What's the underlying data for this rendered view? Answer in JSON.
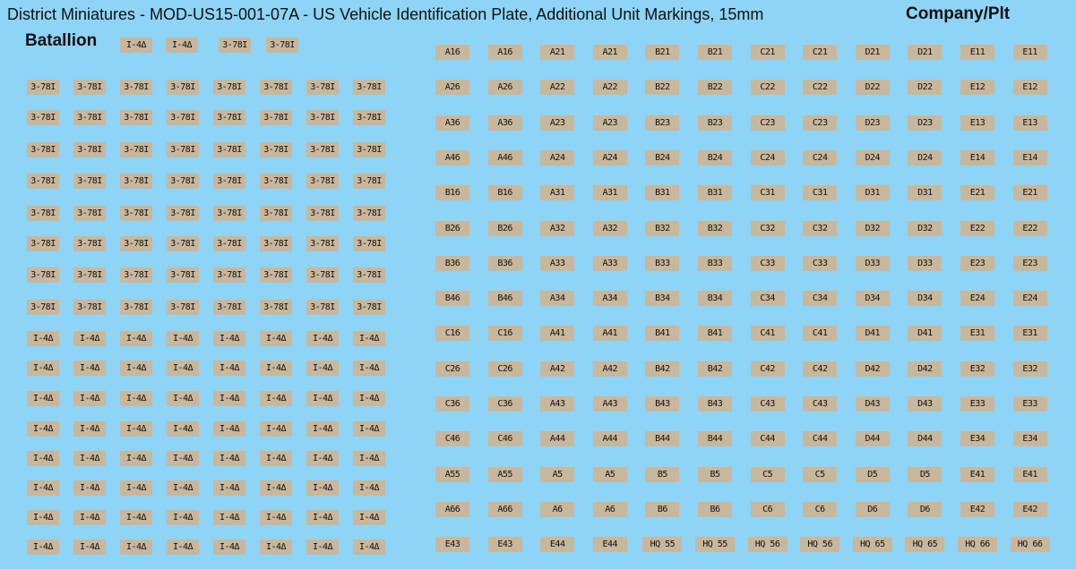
{
  "header": {
    "title": "District Miniatures - MOD-US15-001-07A - US Vehicle Identification Plate, Additional Unit Markings, 15mm",
    "company_label": "Company/Plt"
  },
  "batallion": {
    "label": "Batallion",
    "top_row": [
      "I-4Δ",
      "I-4Δ",
      "3-78I",
      "3-78I"
    ],
    "rows": [
      [
        "3-78I",
        "3-78I",
        "3-78I",
        "3-78I",
        "3-78I",
        "3-78I",
        "3-78I",
        "3-78I"
      ],
      [
        "3-78I",
        "3-78I",
        "3-78I",
        "3-78I",
        "3-78I",
        "3-78I",
        "3-78I",
        "3-78I"
      ],
      [
        "3-78I",
        "3-78I",
        "3-78I",
        "3-78I",
        "3-78I",
        "3-78I",
        "3-78I",
        "3-78I"
      ],
      [
        "3-78I",
        "3-78I",
        "3-78I",
        "3-78I",
        "3-78I",
        "3-78I",
        "3-78I",
        "3-78I"
      ],
      [
        "3-78I",
        "3-78I",
        "3-78I",
        "3-78I",
        "3-78I",
        "3-78I",
        "3-78I",
        "3-78I"
      ],
      [
        "3-78I",
        "3-78I",
        "3-78I",
        "3-78I",
        "3-78I",
        "3-78I",
        "3-78I",
        "3-78I"
      ],
      [
        "3-78I",
        "3-78I",
        "3-78I",
        "3-78I",
        "3-78I",
        "3-78I",
        "3-78I",
        "3-78I"
      ],
      [
        "3-78I",
        "3-78I",
        "3-78I",
        "3-78I",
        "3-78I",
        "3-78I",
        "3-78I",
        "3-78I"
      ],
      [
        "I-4Δ",
        "I-4Δ",
        "I-4Δ",
        "I-4Δ",
        "I-4Δ",
        "I-4Δ",
        "I-4Δ",
        "I-4Δ"
      ],
      [
        "I-4Δ",
        "I-4Δ",
        "I-4Δ",
        "I-4Δ",
        "I-4Δ",
        "I-4Δ",
        "I-4Δ",
        "I-4Δ"
      ],
      [
        "I-4Δ",
        "I-4Δ",
        "I-4Δ",
        "I-4Δ",
        "I-4Δ",
        "I-4Δ",
        "I-4Δ",
        "I-4Δ"
      ],
      [
        "I-4Δ",
        "I-4Δ",
        "I-4Δ",
        "I-4Δ",
        "I-4Δ",
        "I-4Δ",
        "I-4Δ",
        "I-4Δ"
      ],
      [
        "I-4Δ",
        "I-4Δ",
        "I-4Δ",
        "I-4Δ",
        "I-4Δ",
        "I-4Δ",
        "I-4Δ",
        "I-4Δ"
      ],
      [
        "I-4Δ",
        "I-4Δ",
        "I-4Δ",
        "I-4Δ",
        "I-4Δ",
        "I-4Δ",
        "I-4Δ",
        "I-4Δ"
      ],
      [
        "I-4Δ",
        "I-4Δ",
        "I-4Δ",
        "I-4Δ",
        "I-4Δ",
        "I-4Δ",
        "I-4Δ",
        "I-4Δ"
      ],
      [
        "I-4Δ",
        "I-4Δ",
        "I-4Δ",
        "I-4Δ",
        "I-4Δ",
        "I-4Δ",
        "I-4Δ",
        "I-4Δ"
      ]
    ]
  },
  "company": {
    "rows": [
      [
        "A16",
        "A16",
        "A21",
        "A21",
        "B21",
        "B21",
        "C21",
        "C21",
        "D21",
        "D21",
        "E11",
        "E11"
      ],
      [
        "A26",
        "A26",
        "A22",
        "A22",
        "B22",
        "B22",
        "C22",
        "C22",
        "D22",
        "D22",
        "E12",
        "E12"
      ],
      [
        "A36",
        "A36",
        "A23",
        "A23",
        "B23",
        "B23",
        "C23",
        "C23",
        "D23",
        "D23",
        "E13",
        "E13"
      ],
      [
        "A46",
        "A46",
        "A24",
        "A24",
        "B24",
        "B24",
        "C24",
        "C24",
        "D24",
        "D24",
        "E14",
        "E14"
      ],
      [
        "B16",
        "B16",
        "A31",
        "A31",
        "B31",
        "B31",
        "C31",
        "C31",
        "D31",
        "D31",
        "E21",
        "E21"
      ],
      [
        "B26",
        "B26",
        "A32",
        "A32",
        "B32",
        "B32",
        "C32",
        "C32",
        "D32",
        "D32",
        "E22",
        "E22"
      ],
      [
        "B36",
        "B36",
        "A33",
        "A33",
        "B33",
        "B33",
        "C33",
        "C33",
        "D33",
        "D33",
        "E23",
        "E23"
      ],
      [
        "B46",
        "B46",
        "A34",
        "A34",
        "B34",
        "B34",
        "C34",
        "C34",
        "D34",
        "D34",
        "E24",
        "E24"
      ],
      [
        "C16",
        "C16",
        "A41",
        "A41",
        "B41",
        "B41",
        "C41",
        "C41",
        "D41",
        "D41",
        "E31",
        "E31"
      ],
      [
        "C26",
        "C26",
        "A42",
        "A42",
        "B42",
        "B42",
        "C42",
        "C42",
        "D42",
        "D42",
        "E32",
        "E32"
      ],
      [
        "C36",
        "C36",
        "A43",
        "A43",
        "B43",
        "B43",
        "C43",
        "C43",
        "D43",
        "D43",
        "E33",
        "E33"
      ],
      [
        "C46",
        "C46",
        "A44",
        "A44",
        "B44",
        "B44",
        "C44",
        "C44",
        "D44",
        "D44",
        "E34",
        "E34"
      ],
      [
        "A55",
        "A55",
        "A5",
        "A5",
        "B5",
        "B5",
        "C5",
        "C5",
        "D5",
        "D5",
        "E41",
        "E41"
      ],
      [
        "A66",
        "A66",
        "A6",
        "A6",
        "B6",
        "B6",
        "C6",
        "C6",
        "D6",
        "D6",
        "E42",
        "E42"
      ],
      [
        "E43",
        "E43",
        "E44",
        "E44",
        "HQ 55",
        "HQ 55",
        "HQ 56",
        "HQ 56",
        "HQ 65",
        "HQ 65",
        "HQ 66",
        "HQ 66"
      ]
    ]
  }
}
